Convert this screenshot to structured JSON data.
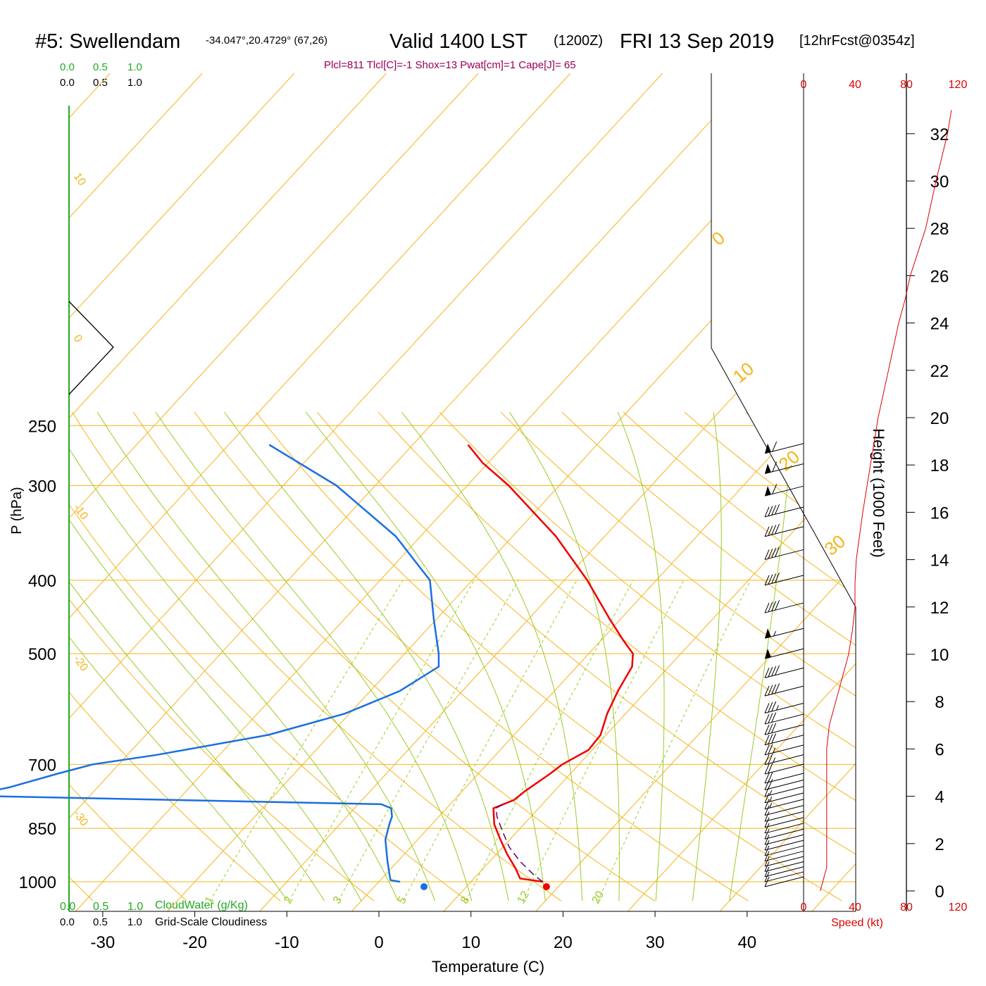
{
  "header": {
    "station": "#5: Swellendam",
    "coords": "-34.047°,20.4729° (67,26)",
    "valid_prefix": "Valid 1400 LST",
    "utc": "(1200Z)",
    "date": "FRI 13 Sep 2019",
    "forecast": "[12hrFcst@0354z]",
    "indices": "Plcl=811 Tlcl[C]=-1 Shox=13 Pwat[cm]=1 Cape[J]= 65"
  },
  "legend": {
    "cloudwater_ticks": [
      "0.0",
      "0.5",
      "1.0"
    ],
    "cloudiness_ticks": [
      "0.0",
      "0.5",
      "1.0"
    ],
    "cloudwater_label": "CloudWater (g/Kg)",
    "cloudiness_label": "Grid-Scale Cloudiness"
  },
  "colors": {
    "temperature": "#ee0000",
    "dewpoint": "#1a6fe0",
    "parcel": "#6a006a",
    "isotherm": "#f5b41a",
    "mixing_ratio": "#99cc22",
    "moist_adiabat": "#99cc22",
    "cloudwater": "#22aa22",
    "wind_speed": "#dd0000",
    "index_text": "#990055"
  },
  "chart_data": {
    "type": "line",
    "title": "#5: Swellendam  Valid 1400 LST (1200Z) FRI 13 Sep 2019",
    "xlabel": "Temperature (C)",
    "ylabel": "P (hPa)",
    "xlim": [
      -34,
      47
    ],
    "ylim_pressure": [
      1000,
      250
    ],
    "x_ticks": [
      "-30",
      "-20",
      "-10",
      "0",
      "10",
      "20",
      "30",
      "40"
    ],
    "pressure_ticks": [
      "250",
      "300",
      "400",
      "500",
      "700",
      "850",
      "1000"
    ],
    "height_axis": {
      "label": "Height (1000 Feet)",
      "ticks": [
        "0",
        "2",
        "4",
        "6",
        "8",
        "10",
        "12",
        "14",
        "16",
        "18",
        "20",
        "22",
        "24",
        "26",
        "28",
        "30",
        "32"
      ]
    },
    "speed_axis": {
      "label": "Speed (kt)",
      "ticks": [
        "0",
        "40",
        "80",
        "120"
      ]
    },
    "isotherm_labels": [
      {
        "side": "left",
        "label": "10"
      },
      {
        "side": "left",
        "label": "0"
      },
      {
        "side": "left",
        "label": "-10"
      },
      {
        "side": "left",
        "label": "-20"
      },
      {
        "side": "left",
        "label": "-30"
      },
      {
        "side": "right",
        "label": "0"
      },
      {
        "side": "right",
        "label": "10"
      },
      {
        "side": "right",
        "label": "20"
      },
      {
        "side": "right",
        "label": "30"
      }
    ],
    "mixing_ratio_labels": [
      "1",
      "2",
      "3",
      "5",
      "8",
      "12",
      "20"
    ],
    "series": [
      {
        "name": "Temperature",
        "points": [
          {
            "p": 1000,
            "t": 17.8
          },
          {
            "p": 990,
            "t": 15.0
          },
          {
            "p": 960,
            "t": 13.5
          },
          {
            "p": 920,
            "t": 11.2
          },
          {
            "p": 880,
            "t": 9.0
          },
          {
            "p": 840,
            "t": 6.8
          },
          {
            "p": 800,
            "t": 5.1
          },
          {
            "p": 780,
            "t": 6.5
          },
          {
            "p": 760,
            "t": 6.8
          },
          {
            "p": 720,
            "t": 7.8
          },
          {
            "p": 700,
            "t": 8.2
          },
          {
            "p": 670,
            "t": 9.6
          },
          {
            "p": 640,
            "t": 9.4
          },
          {
            "p": 600,
            "t": 8.0
          },
          {
            "p": 560,
            "t": 6.9
          },
          {
            "p": 520,
            "t": 6.0
          },
          {
            "p": 500,
            "t": 4.8
          },
          {
            "p": 480,
            "t": 2.4
          },
          {
            "p": 450,
            "t": -1.2
          },
          {
            "p": 400,
            "t": -7.5
          },
          {
            "p": 350,
            "t": -15.3
          },
          {
            "p": 300,
            "t": -25.5
          },
          {
            "p": 280,
            "t": -30.6
          },
          {
            "p": 265,
            "t": -34.0
          }
        ]
      },
      {
        "name": "Dewpoint",
        "points": [
          {
            "p": 1000,
            "t": 2.3
          },
          {
            "p": 995,
            "t": 1.1
          },
          {
            "p": 980,
            "t": 0.5
          },
          {
            "p": 940,
            "t": -1.1
          },
          {
            "p": 880,
            "t": -3.5
          },
          {
            "p": 840,
            "t": -4.6
          },
          {
            "p": 820,
            "t": -5.1
          },
          {
            "p": 800,
            "t": -6.0
          },
          {
            "p": 790,
            "t": -7.5
          },
          {
            "p": 770,
            "t": -53.0
          },
          {
            "p": 750,
            "t": -49.5
          },
          {
            "p": 720,
            "t": -45.7
          },
          {
            "p": 700,
            "t": -42.8
          },
          {
            "p": 680,
            "t": -36.8
          },
          {
            "p": 640,
            "t": -26.7
          },
          {
            "p": 600,
            "t": -20.5
          },
          {
            "p": 560,
            "t": -16.8
          },
          {
            "p": 520,
            "t": -15.0
          },
          {
            "p": 500,
            "t": -16.3
          },
          {
            "p": 450,
            "t": -20.3
          },
          {
            "p": 400,
            "t": -24.6
          },
          {
            "p": 350,
            "t": -32.7
          },
          {
            "p": 300,
            "t": -44.2
          },
          {
            "p": 265,
            "t": -55.6
          }
        ]
      },
      {
        "name": "Parcel",
        "points": [
          {
            "p": 1000,
            "t": 17.8
          },
          {
            "p": 980,
            "t": 16.2
          },
          {
            "p": 940,
            "t": 13.3
          },
          {
            "p": 900,
            "t": 10.7
          },
          {
            "p": 860,
            "t": 8.5
          },
          {
            "p": 820,
            "t": 6.3
          },
          {
            "p": 800,
            "t": 5.4
          },
          {
            "p": 785,
            "t": 5.8
          }
        ]
      }
    ],
    "surface_points": {
      "temperature": 18.2,
      "dewpoint": 4.9
    },
    "wind_speed_profile": [
      {
        "h": 0,
        "kt": 13
      },
      {
        "h": 1,
        "kt": 18
      },
      {
        "h": 4,
        "kt": 18
      },
      {
        "h": 6,
        "kt": 18
      },
      {
        "h": 7,
        "kt": 20
      },
      {
        "h": 8,
        "kt": 25
      },
      {
        "h": 9,
        "kt": 30
      },
      {
        "h": 10,
        "kt": 35
      },
      {
        "h": 11,
        "kt": 38
      },
      {
        "h": 12,
        "kt": 40
      },
      {
        "h": 13,
        "kt": 40
      },
      {
        "h": 14,
        "kt": 41
      },
      {
        "h": 16,
        "kt": 46
      },
      {
        "h": 18,
        "kt": 52
      },
      {
        "h": 20,
        "kt": 58
      },
      {
        "h": 22,
        "kt": 66
      },
      {
        "h": 24,
        "kt": 74
      },
      {
        "h": 25,
        "kt": 79
      },
      {
        "h": 26,
        "kt": 83
      },
      {
        "h": 28,
        "kt": 95
      },
      {
        "h": 30,
        "kt": 103
      },
      {
        "h": 32,
        "kt": 112
      },
      {
        "h": 33,
        "kt": 115
      }
    ],
    "wind_barbs": [
      {
        "p": 1000,
        "dir": 290,
        "kt": 10
      },
      {
        "p": 985,
        "dir": 285,
        "kt": 10
      },
      {
        "p": 970,
        "dir": 280,
        "kt": 10
      },
      {
        "p": 955,
        "dir": 280,
        "kt": 10
      },
      {
        "p": 940,
        "dir": 280,
        "kt": 10
      },
      {
        "p": 925,
        "dir": 280,
        "kt": 10
      },
      {
        "p": 910,
        "dir": 280,
        "kt": 10
      },
      {
        "p": 895,
        "dir": 280,
        "kt": 10
      },
      {
        "p": 880,
        "dir": 280,
        "kt": 10
      },
      {
        "p": 865,
        "dir": 280,
        "kt": 10
      },
      {
        "p": 850,
        "dir": 280,
        "kt": 10
      },
      {
        "p": 835,
        "dir": 280,
        "kt": 10
      },
      {
        "p": 820,
        "dir": 280,
        "kt": 10
      },
      {
        "p": 805,
        "dir": 280,
        "kt": 10
      },
      {
        "p": 790,
        "dir": 280,
        "kt": 15
      },
      {
        "p": 775,
        "dir": 280,
        "kt": 15
      },
      {
        "p": 760,
        "dir": 280,
        "kt": 15
      },
      {
        "p": 745,
        "dir": 280,
        "kt": 20
      },
      {
        "p": 730,
        "dir": 280,
        "kt": 20
      },
      {
        "p": 710,
        "dir": 280,
        "kt": 20
      },
      {
        "p": 690,
        "dir": 280,
        "kt": 25
      },
      {
        "p": 670,
        "dir": 280,
        "kt": 25
      },
      {
        "p": 650,
        "dir": 280,
        "kt": 30
      },
      {
        "p": 630,
        "dir": 280,
        "kt": 30
      },
      {
        "p": 610,
        "dir": 280,
        "kt": 30
      },
      {
        "p": 590,
        "dir": 280,
        "kt": 35
      },
      {
        "p": 560,
        "dir": 280,
        "kt": 40
      },
      {
        "p": 530,
        "dir": 280,
        "kt": 40
      },
      {
        "p": 500,
        "dir": 280,
        "kt": 50
      },
      {
        "p": 470,
        "dir": 280,
        "kt": 55
      },
      {
        "p": 435,
        "dir": 280,
        "kt": 40
      },
      {
        "p": 400,
        "dir": 280,
        "kt": 40
      },
      {
        "p": 370,
        "dir": 280,
        "kt": 40
      },
      {
        "p": 345,
        "dir": 280,
        "kt": 40
      },
      {
        "p": 325,
        "dir": 280,
        "kt": 40
      },
      {
        "p": 305,
        "dir": 280,
        "kt": 60
      },
      {
        "p": 285,
        "dir": 280,
        "kt": 60
      },
      {
        "p": 268,
        "dir": 280,
        "kt": 60
      }
    ]
  }
}
